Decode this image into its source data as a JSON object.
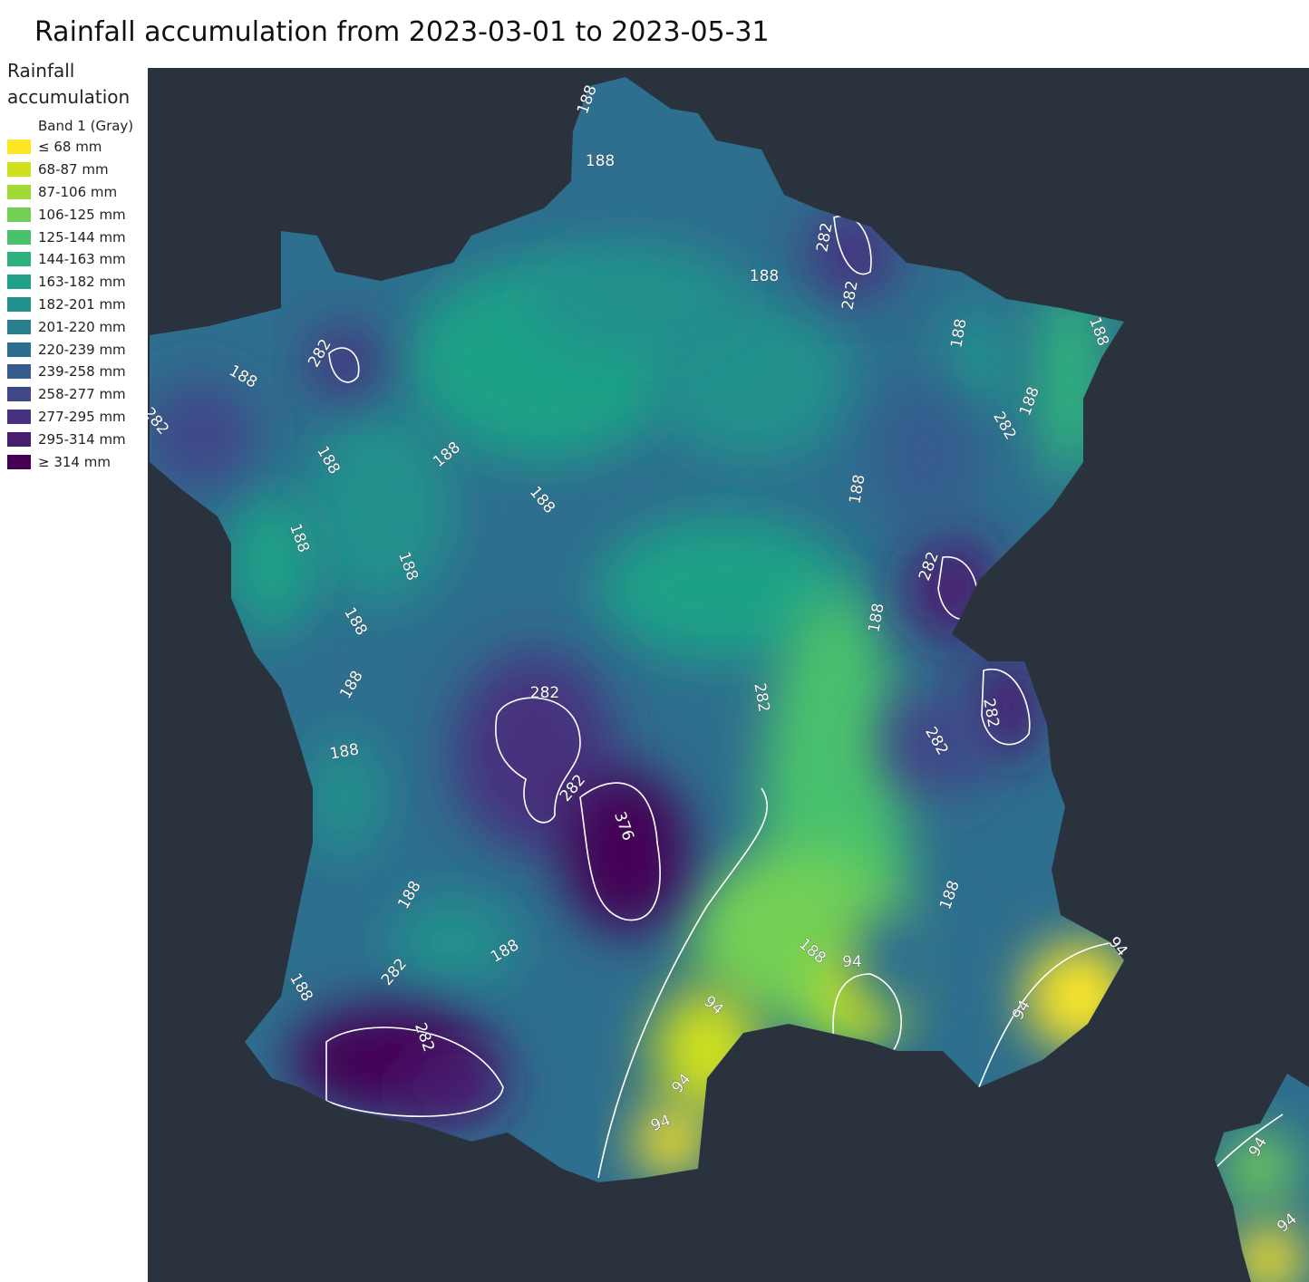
{
  "title": "Rainfall accumulation from 2023-03-01 to 2023-05-31",
  "legend": {
    "title": "Rainfall accumulation",
    "subtitle": "Band 1 (Gray)",
    "items": [
      {
        "label": "≤ 68 mm",
        "color": "#fde725"
      },
      {
        "label": "68-87 mm",
        "color": "#d0e11c"
      },
      {
        "label": "87-106 mm",
        "color": "#a0da39"
      },
      {
        "label": "106-125 mm",
        "color": "#73d056"
      },
      {
        "label": "125-144 mm",
        "color": "#4ac16d"
      },
      {
        "label": "144-163 mm",
        "color": "#2db27d"
      },
      {
        "label": "163-182 mm",
        "color": "#1fa187"
      },
      {
        "label": "182-201 mm",
        "color": "#21918c"
      },
      {
        "label": "201-220 mm",
        "color": "#277f8e"
      },
      {
        "label": "220-239 mm",
        "color": "#2e6e8e"
      },
      {
        "label": "239-258 mm",
        "color": "#365c8d"
      },
      {
        "label": "258-277 mm",
        "color": "#3f4788"
      },
      {
        "label": "277-295 mm",
        "color": "#46327e"
      },
      {
        "label": "295-314 mm",
        "color": "#481d6f"
      },
      {
        "label": "≥ 314 mm",
        "color": "#440154"
      }
    ]
  },
  "contour_labels": [
    "188",
    "188",
    "282",
    "188",
    "282",
    "188",
    "188",
    "282",
    "188",
    "188",
    "282",
    "282",
    "188",
    "188",
    "188",
    "188",
    "188",
    "188",
    "282",
    "188",
    "188",
    "188",
    "282",
    "282",
    "282",
    "282",
    "188",
    "282",
    "376",
    "188",
    "188",
    "188",
    "188",
    "94",
    "94",
    "282",
    "188",
    "94",
    "94",
    "282",
    "94",
    "94",
    "94",
    "94"
  ]
}
